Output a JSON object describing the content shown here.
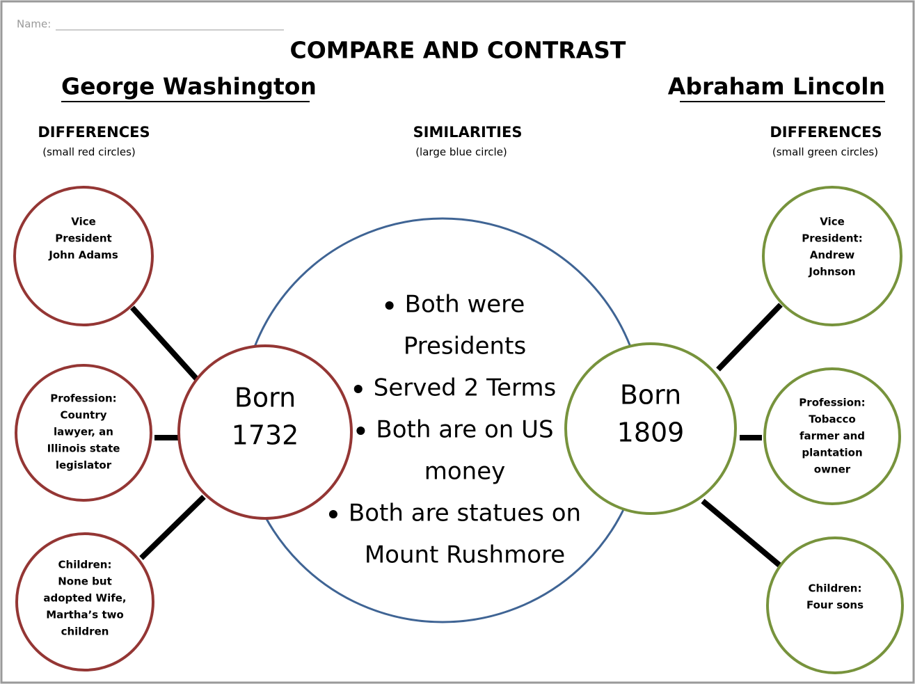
{
  "header": {
    "name_label": "Name:",
    "title": "COMPARE AND CONTRAST",
    "left_subject": "George Washington",
    "right_subject": "Abraham Lincoln"
  },
  "columns": {
    "left": {
      "heading": "DIFFERENCES",
      "note": "(small red circles)"
    },
    "center": {
      "heading": "SIMILARITIES",
      "note": "(large blue circle)"
    },
    "right": {
      "heading": "DIFFERENCES",
      "note": "(small green circles)"
    }
  },
  "center_circles": {
    "left": [
      "Born",
      "1732"
    ],
    "right": [
      "Born",
      "1809"
    ]
  },
  "similarities": [
    [
      "Both were",
      "Presidents"
    ],
    [
      "Served 2 Terms"
    ],
    [
      "Both are on US",
      "money"
    ],
    [
      "Both are statues on",
      "Mount Rushmore"
    ]
  ],
  "left_differences": [
    [
      "Vice",
      "President",
      "John Adams"
    ],
    [
      "Profession:",
      "Country",
      "lawyer, an",
      "Illinois state",
      "legislator"
    ],
    [
      "Children:",
      "None but",
      "adopted Wife,",
      "Martha’s two",
      "children"
    ]
  ],
  "right_differences": [
    [
      "Vice",
      "President:",
      "Andrew",
      "Johnson"
    ],
    [
      "Profession:",
      "Tobacco",
      "farmer and",
      "plantation",
      "owner"
    ],
    [
      "Children:",
      "Four sons"
    ]
  ]
}
